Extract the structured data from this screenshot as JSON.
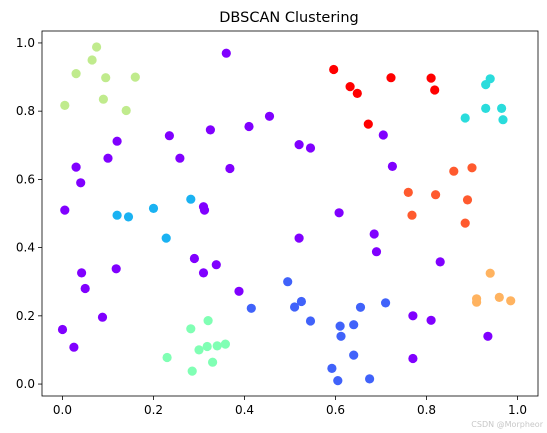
{
  "chart_data": {
    "type": "scatter",
    "title": "DBSCAN Clustering",
    "xlabel": "",
    "ylabel": "",
    "xlim": [
      -0.045,
      1.045
    ],
    "ylim": [
      -0.035,
      1.035
    ],
    "xticks": [
      "0.0",
      "0.2",
      "0.4",
      "0.6",
      "0.8",
      "1.0"
    ],
    "yticks": [
      "0.0",
      "0.2",
      "0.4",
      "0.6",
      "0.8",
      "1.0"
    ],
    "grid": false,
    "legend": "none",
    "series": [
      {
        "color": "#8000ff",
        "points": [
          [
            0.36,
            0.97
          ],
          [
            0.455,
            0.785
          ],
          [
            0.41,
            0.755
          ],
          [
            0.325,
            0.745
          ],
          [
            0.235,
            0.728
          ],
          [
            0.12,
            0.712
          ],
          [
            0.1,
            0.662
          ],
          [
            0.258,
            0.662
          ],
          [
            0.03,
            0.636
          ],
          [
            0.368,
            0.632
          ],
          [
            0.04,
            0.59
          ],
          [
            0.005,
            0.51
          ],
          [
            0.31,
            0.52
          ],
          [
            0.312,
            0.51
          ],
          [
            0.52,
            0.702
          ],
          [
            0.545,
            0.692
          ],
          [
            0.705,
            0.73
          ],
          [
            0.725,
            0.638
          ],
          [
            0.608,
            0.502
          ],
          [
            0.52,
            0.428
          ],
          [
            0.685,
            0.44
          ],
          [
            0.69,
            0.388
          ],
          [
            0.83,
            0.358
          ],
          [
            0.118,
            0.338
          ],
          [
            0.29,
            0.368
          ],
          [
            0.31,
            0.326
          ],
          [
            0.338,
            0.35
          ],
          [
            0.042,
            0.326
          ],
          [
            0.05,
            0.28
          ],
          [
            0.388,
            0.272
          ],
          [
            0.088,
            0.196
          ],
          [
            0.0,
            0.16
          ],
          [
            0.025,
            0.108
          ],
          [
            0.77,
            0.2
          ],
          [
            0.81,
            0.187
          ],
          [
            0.935,
            0.14
          ],
          [
            0.77,
            0.075
          ]
        ]
      },
      {
        "color": "#1ab2f2",
        "points": [
          [
            0.282,
            0.542
          ],
          [
            0.2,
            0.515
          ],
          [
            0.12,
            0.495
          ],
          [
            0.145,
            0.49
          ],
          [
            0.228,
            0.428
          ]
        ]
      },
      {
        "color": "#4062fa",
        "points": [
          [
            0.415,
            0.222
          ],
          [
            0.495,
            0.3
          ],
          [
            0.51,
            0.226
          ],
          [
            0.525,
            0.242
          ],
          [
            0.545,
            0.185
          ],
          [
            0.655,
            0.225
          ],
          [
            0.71,
            0.238
          ],
          [
            0.61,
            0.17
          ],
          [
            0.64,
            0.174
          ],
          [
            0.612,
            0.14
          ],
          [
            0.64,
            0.085
          ],
          [
            0.592,
            0.046
          ],
          [
            0.605,
            0.01
          ],
          [
            0.675,
            0.015
          ]
        ]
      },
      {
        "color": "#2adcdc",
        "points": [
          [
            0.93,
            0.878
          ],
          [
            0.94,
            0.895
          ],
          [
            0.93,
            0.808
          ],
          [
            0.965,
            0.808
          ],
          [
            0.968,
            0.775
          ],
          [
            0.885,
            0.78
          ]
        ]
      },
      {
        "color": "#80ffb4",
        "points": [
          [
            0.282,
            0.162
          ],
          [
            0.32,
            0.186
          ],
          [
            0.3,
            0.1
          ],
          [
            0.318,
            0.11
          ],
          [
            0.34,
            0.112
          ],
          [
            0.358,
            0.117
          ],
          [
            0.23,
            0.078
          ],
          [
            0.33,
            0.064
          ],
          [
            0.285,
            0.038
          ]
        ]
      },
      {
        "color": "#c0eb8d",
        "points": [
          [
            0.075,
            0.988
          ],
          [
            0.03,
            0.91
          ],
          [
            0.065,
            0.95
          ],
          [
            0.095,
            0.898
          ],
          [
            0.16,
            0.9
          ],
          [
            0.005,
            0.817
          ],
          [
            0.09,
            0.835
          ],
          [
            0.14,
            0.802
          ]
        ]
      },
      {
        "color": "#ffb360",
        "points": [
          [
            0.94,
            0.325
          ],
          [
            0.91,
            0.25
          ],
          [
            0.91,
            0.24
          ],
          [
            0.96,
            0.254
          ],
          [
            0.985,
            0.244
          ]
        ]
      },
      {
        "color": "#ff5a2e",
        "points": [
          [
            0.9,
            0.634
          ],
          [
            0.86,
            0.624
          ],
          [
            0.76,
            0.562
          ],
          [
            0.82,
            0.555
          ],
          [
            0.89,
            0.54
          ],
          [
            0.768,
            0.495
          ],
          [
            0.885,
            0.472
          ]
        ]
      },
      {
        "color": "#ff0000",
        "points": [
          [
            0.596,
            0.922
          ],
          [
            0.722,
            0.898
          ],
          [
            0.81,
            0.897
          ],
          [
            0.632,
            0.872
          ],
          [
            0.648,
            0.852
          ],
          [
            0.818,
            0.862
          ],
          [
            0.672,
            0.762
          ]
        ]
      }
    ]
  },
  "watermark": "CSDN @Morpheor"
}
